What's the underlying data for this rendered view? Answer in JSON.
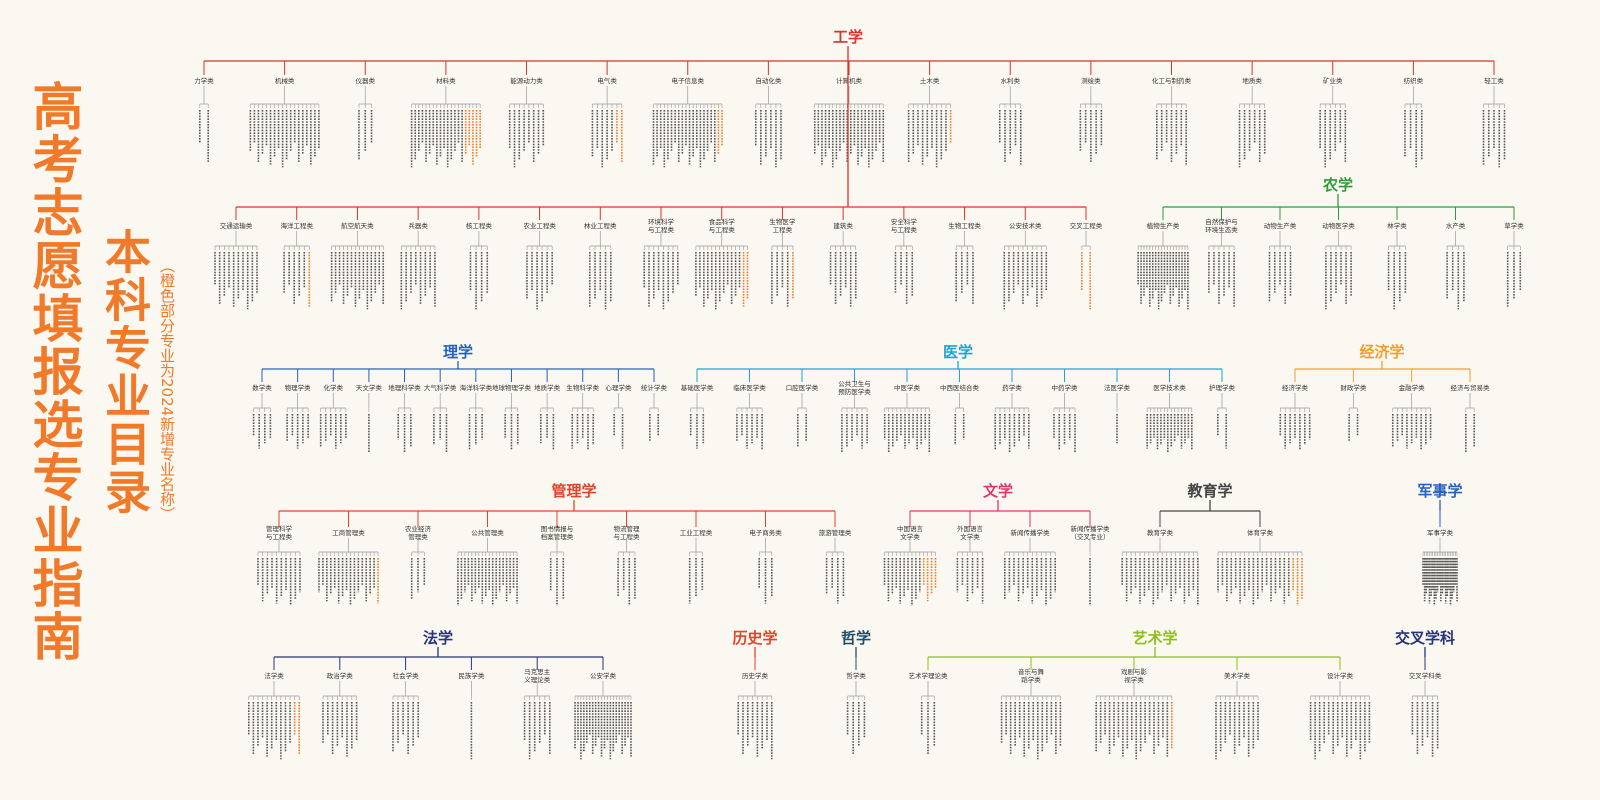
{
  "title": {
    "main": "高考志愿填报选专业指南",
    "sub": "本科专业目录",
    "note": "（橙色部分专业为2024新增专业名称）"
  },
  "colors": {
    "title": "#f07a2a",
    "highlight": "#f07a2a",
    "leaf": "#555555"
  },
  "tree": [
    {
      "id": "gongxue",
      "name": "工学",
      "color": "#d9332a",
      "subs": [
        {
          "name": "力学类",
          "n": 2
        },
        {
          "name": "机械类",
          "n": 18
        },
        {
          "name": "仪器类",
          "n": 3
        },
        {
          "name": "材料类",
          "n": 20,
          "hl": 5
        },
        {
          "name": "能源动力类",
          "n": 8
        },
        {
          "name": "电气类",
          "n": 7,
          "hl": 2
        },
        {
          "name": "电子信息类",
          "n": 20,
          "hl": 2
        },
        {
          "name": "自动化类",
          "n": 6
        },
        {
          "name": "计算机类",
          "n": 20
        },
        {
          "name": "土木类",
          "n": 10,
          "hl": 1
        },
        {
          "name": "水利类",
          "n": 5
        },
        {
          "name": "测绘类",
          "n": 5
        },
        {
          "name": "化工与制药类",
          "n": 7
        },
        {
          "name": "地质类",
          "n": 6
        },
        {
          "name": "矿业类",
          "n": 6
        },
        {
          "name": "纺织类",
          "n": 4
        },
        {
          "name": "轻工类",
          "n": 5
        }
      ]
    },
    {
      "id": "gongxue2",
      "name": "",
      "color": "#d9332a",
      "subs": [
        {
          "name": "交通运输类",
          "n": 10
        },
        {
          "name": "海洋工程类",
          "n": 6,
          "hl": 1
        },
        {
          "name": "航空航天类",
          "n": 14
        },
        {
          "name": "兵器类",
          "n": 8
        },
        {
          "name": "核工程类",
          "n": 4
        },
        {
          "name": "农业工程类",
          "n": 6
        },
        {
          "name": "林业工程类",
          "n": 5
        },
        {
          "name": "环境科学与工程类",
          "n": 8
        },
        {
          "name": "食品科学与工程类",
          "n": 14,
          "hl": 2
        },
        {
          "name": "生物医学工程类",
          "n": 5,
          "hl": 1
        },
        {
          "name": "建筑类",
          "n": 6
        },
        {
          "name": "安全科学与工程类",
          "n": 4
        },
        {
          "name": "生物工程类",
          "n": 4
        },
        {
          "name": "公安技术类",
          "n": 10
        },
        {
          "name": "交叉工程类",
          "n": 2,
          "hl": 2
        }
      ]
    },
    {
      "id": "nongxue",
      "name": "农学",
      "color": "#2e9a3a",
      "subs": [
        {
          "name": "植物生产类",
          "n": 18
        },
        {
          "name": "自然保护与环境生态类",
          "n": 6
        },
        {
          "name": "动物生产类",
          "n": 5
        },
        {
          "name": "动物医学类",
          "n": 6
        },
        {
          "name": "林学类",
          "n": 4
        },
        {
          "name": "水产类",
          "n": 4
        },
        {
          "name": "草学类",
          "n": 3
        }
      ]
    },
    {
      "id": "lixue",
      "name": "理学",
      "color": "#2560bf",
      "subs": [
        {
          "name": "数学类",
          "n": 4
        },
        {
          "name": "物理学类",
          "n": 5
        },
        {
          "name": "化学类",
          "n": 6
        },
        {
          "name": "天文学类",
          "n": 1
        },
        {
          "name": "地理科学类",
          "n": 3
        },
        {
          "name": "大气科学类",
          "n": 3
        },
        {
          "name": "海洋科学类",
          "n": 3
        },
        {
          "name": "地球物理学类",
          "n": 3
        },
        {
          "name": "地质学类",
          "n": 3
        },
        {
          "name": "生物科学类",
          "n": 5
        },
        {
          "name": "心理学类",
          "n": 2
        },
        {
          "name": "统计学类",
          "n": 2
        }
      ]
    },
    {
      "id": "yixue",
      "name": "医学",
      "color": "#1aa5d6",
      "subs": [
        {
          "name": "基础医学类",
          "n": 3
        },
        {
          "name": "临床医学类",
          "n": 6
        },
        {
          "name": "口腔医学类",
          "n": 2
        },
        {
          "name": "公共卫生与预防医学类",
          "n": 6
        },
        {
          "name": "中医学类",
          "n": 12
        },
        {
          "name": "中西医结合类",
          "n": 2
        },
        {
          "name": "药学类",
          "n": 8
        },
        {
          "name": "中药学类",
          "n": 5
        },
        {
          "name": "法医学类",
          "n": 1
        },
        {
          "name": "医学技术类",
          "n": 14
        },
        {
          "name": "护理学类",
          "n": 2
        }
      ]
    },
    {
      "id": "jingjixue",
      "name": "经济学",
      "color": "#f0a02a",
      "subs": [
        {
          "name": "经济学类",
          "n": 7
        },
        {
          "name": "财政学类",
          "n": 2
        },
        {
          "name": "金融学类",
          "n": 9
        },
        {
          "name": "经济与贸易类",
          "n": 2
        }
      ]
    },
    {
      "id": "guanlixue",
      "name": "管理学",
      "color": "#e0442a",
      "subs": [
        {
          "name": "管理科学与工程类",
          "n": 10
        },
        {
          "name": "工商管理类",
          "n": 16,
          "hl": 1
        },
        {
          "name": "农业经济管理类",
          "n": 3
        },
        {
          "name": "公共管理类",
          "n": 18
        },
        {
          "name": "图书情报与档案管理类",
          "n": 3
        },
        {
          "name": "物流管理与工程类",
          "n": 4
        },
        {
          "name": "工业工程类",
          "n": 3
        },
        {
          "name": "电子商务类",
          "n": 3
        },
        {
          "name": "旅游管理类",
          "n": 4
        }
      ]
    },
    {
      "id": "wenxue",
      "name": "文学",
      "color": "#e0356a",
      "subs": [
        {
          "name": "中国语言文学类",
          "n": 14,
          "hl": 4
        },
        {
          "name": "外国语言文学类",
          "n": 6
        },
        {
          "name": "新闻传播学类",
          "n": 12
        },
        {
          "name": "新闻传播学类（交叉专业）",
          "n": 1
        }
      ]
    },
    {
      "id": "jiaoyuxue",
      "name": "教育学",
      "color": "#444444",
      "subs": [
        {
          "name": "教育学类",
          "n": 18
        },
        {
          "name": "体育学类",
          "n": 20,
          "hl": 3
        }
      ]
    },
    {
      "id": "junshixue",
      "name": "军事学",
      "color": "#2560bf",
      "subs": [
        {
          "name": "军事学类",
          "n": 22
        }
      ]
    },
    {
      "id": "faxue",
      "name": "法学",
      "color": "#26357a",
      "subs": [
        {
          "name": "法学类",
          "n": 12,
          "hl": 2
        },
        {
          "name": "政治学类",
          "n": 8
        },
        {
          "name": "社会学类",
          "n": 6
        },
        {
          "name": "民族学类",
          "n": 1
        },
        {
          "name": "马克思主义理论类",
          "n": 6
        },
        {
          "name": "公安学类",
          "n": 20
        }
      ]
    },
    {
      "id": "lishixue",
      "name": "历史学",
      "color": "#e0442a",
      "subs": [
        {
          "name": "历史学类",
          "n": 8
        }
      ]
    },
    {
      "id": "zhexue",
      "name": "哲学",
      "color": "#1f4e6a",
      "subs": [
        {
          "name": "哲学类",
          "n": 4
        }
      ]
    },
    {
      "id": "yishuxue",
      "name": "艺术学",
      "color": "#8cbf1e",
      "subs": [
        {
          "name": "艺术学理论类",
          "n": 3
        },
        {
          "name": "音乐与舞蹈学类",
          "n": 14
        },
        {
          "name": "戏剧与影视学类",
          "n": 18,
          "hl": 1
        },
        {
          "name": "美术学类",
          "n": 10
        },
        {
          "name": "设计学类",
          "n": 14
        }
      ]
    },
    {
      "id": "jiaochaxue",
      "name": "交叉学科",
      "color": "#26357a",
      "subs": [
        {
          "name": "交叉学科类",
          "n": 6
        }
      ]
    }
  ]
}
